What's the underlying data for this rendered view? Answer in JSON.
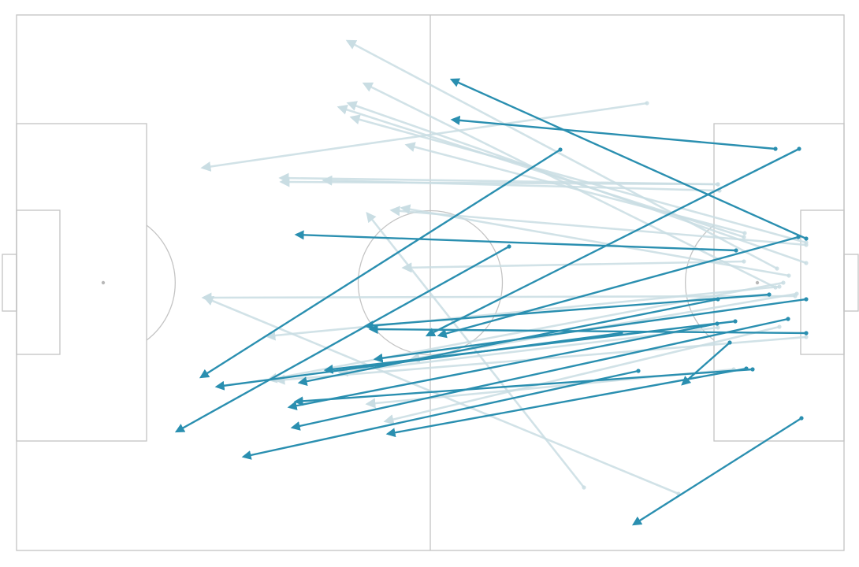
{
  "colors": {
    "background": "#ffffff",
    "pitch_lines": "#c4c4c4",
    "highlight_pass": "#2a8fb0",
    "faded_pass": "#c9dde3"
  },
  "chart_data": {
    "type": "pass-map",
    "title": "",
    "xlabel": "",
    "ylabel": "",
    "xlim": [
      0,
      105
    ],
    "ylim": [
      0,
      68
    ],
    "series": [
      {
        "style": "highlight",
        "passes": [
          {
            "x": 100.2,
            "y": 39.6,
            "end_x": 55.2,
            "end_y": 59.8
          },
          {
            "x": 96.3,
            "y": 51.0,
            "end_x": 55.3,
            "end_y": 54.7
          },
          {
            "x": 69.0,
            "y": 50.9,
            "end_x": 23.4,
            "end_y": 22.0
          },
          {
            "x": 62.5,
            "y": 38.6,
            "end_x": 20.3,
            "end_y": 15.1
          },
          {
            "x": 91.3,
            "y": 38.1,
            "end_x": 35.5,
            "end_y": 40.1
          },
          {
            "x": 99.2,
            "y": 39.8,
            "end_x": 53.6,
            "end_y": 27.3
          },
          {
            "x": 95.5,
            "y": 32.5,
            "end_x": 44.3,
            "end_y": 28.5
          },
          {
            "x": 89.0,
            "y": 31.9,
            "end_x": 35.9,
            "end_y": 21.3
          },
          {
            "x": 76.7,
            "y": 27.6,
            "end_x": 25.4,
            "end_y": 20.8
          },
          {
            "x": 100.2,
            "y": 31.9,
            "end_x": 45.5,
            "end_y": 24.3
          },
          {
            "x": 88.9,
            "y": 28.8,
            "end_x": 34.6,
            "end_y": 18.2
          },
          {
            "x": 97.9,
            "y": 29.4,
            "end_x": 35.0,
            "end_y": 15.6
          },
          {
            "x": 99.3,
            "y": 51.0,
            "end_x": 52.1,
            "end_y": 27.3
          },
          {
            "x": 92.6,
            "y": 23.1,
            "end_x": 47.1,
            "end_y": 14.8
          },
          {
            "x": 78.9,
            "y": 22.8,
            "end_x": 28.8,
            "end_y": 11.9
          },
          {
            "x": 100.2,
            "y": 27.6,
            "end_x": 44.9,
            "end_y": 28.1
          },
          {
            "x": 99.6,
            "y": 16.8,
            "end_x": 78.3,
            "end_y": 3.3
          },
          {
            "x": 90.5,
            "y": 26.4,
            "end_x": 84.5,
            "end_y": 21.1
          },
          {
            "x": 93.4,
            "y": 23.0,
            "end_x": 35.4,
            "end_y": 18.9
          },
          {
            "x": 91.2,
            "y": 29.1,
            "end_x": 39.2,
            "end_y": 22.9
          }
        ]
      },
      {
        "style": "faded",
        "passes": [
          {
            "x": 96.5,
            "y": 35.8,
            "end_x": 42.0,
            "end_y": 64.7
          },
          {
            "x": 100.2,
            "y": 36.5,
            "end_x": 42.1,
            "end_y": 56.8
          },
          {
            "x": 80.0,
            "y": 56.8,
            "end_x": 23.6,
            "end_y": 48.6
          },
          {
            "x": 100.2,
            "y": 39.1,
            "end_x": 42.5,
            "end_y": 55.0
          },
          {
            "x": 92.3,
            "y": 39.8,
            "end_x": 40.9,
            "end_y": 56.3
          },
          {
            "x": 96.3,
            "y": 33.4,
            "end_x": 44.1,
            "end_y": 59.3
          },
          {
            "x": 89.0,
            "y": 46.5,
            "end_x": 33.5,
            "end_y": 47.3
          },
          {
            "x": 89.0,
            "y": 46.5,
            "end_x": 33.6,
            "end_y": 46.8
          },
          {
            "x": 89.2,
            "y": 45.7,
            "end_x": 39.0,
            "end_y": 47.0
          },
          {
            "x": 92.4,
            "y": 40.3,
            "end_x": 49.5,
            "end_y": 51.5
          },
          {
            "x": 100.2,
            "y": 38.8,
            "end_x": 47.6,
            "end_y": 43.2
          },
          {
            "x": 98.0,
            "y": 34.9,
            "end_x": 48.9,
            "end_y": 43.5
          },
          {
            "x": 92.3,
            "y": 36.7,
            "end_x": 49.1,
            "end_y": 35.9
          },
          {
            "x": 98.8,
            "y": 32.3,
            "end_x": 23.7,
            "end_y": 32.1
          },
          {
            "x": 72.0,
            "y": 8.0,
            "end_x": 44.5,
            "end_y": 42.8
          },
          {
            "x": 84.0,
            "y": 7.2,
            "end_x": 23.9,
            "end_y": 32.1
          },
          {
            "x": 96.8,
            "y": 33.5,
            "end_x": 31.8,
            "end_y": 27.2
          },
          {
            "x": 97.3,
            "y": 34.0,
            "end_x": 32.0,
            "end_y": 21.7
          },
          {
            "x": 89.0,
            "y": 28.3,
            "end_x": 41.0,
            "end_y": 22.6
          },
          {
            "x": 96.8,
            "y": 28.4,
            "end_x": 46.8,
            "end_y": 16.4
          },
          {
            "x": 91.0,
            "y": 23.0,
            "end_x": 44.5,
            "end_y": 18.6
          },
          {
            "x": 100.2,
            "y": 27.1,
            "end_x": 33.0,
            "end_y": 21.6
          },
          {
            "x": 99.0,
            "y": 32.6,
            "end_x": 50.1,
            "end_y": 24.3
          }
        ]
      }
    ]
  }
}
